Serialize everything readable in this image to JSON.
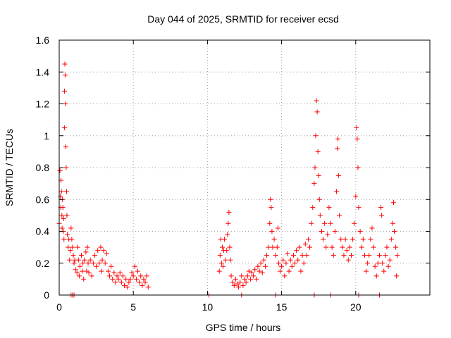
{
  "chart_data": {
    "type": "scatter",
    "title": "Day 044 of 2025, SRMTID for receiver ecsd",
    "xlabel": "GPS time / hours",
    "ylabel": "SRMTID / TECUs",
    "xlim": [
      0,
      25
    ],
    "ylim": [
      0,
      1.6
    ],
    "xticks": [
      0,
      5,
      10,
      15,
      20
    ],
    "xtick_labels": [
      "0",
      "5",
      "10",
      "15",
      "20"
    ],
    "yticks": [
      0,
      0.2,
      0.4,
      0.6,
      0.8,
      1.0,
      1.2,
      1.4,
      1.6
    ],
    "ytick_labels": [
      "0",
      "0.2",
      "0.4",
      "0.6",
      "0.8",
      "1",
      "1.2",
      "1.4",
      "1.6"
    ],
    "grid": true,
    "marker": "+",
    "color": "#ff0000",
    "series": [
      {
        "name": "SRMTID",
        "points": [
          [
            0.0,
            0.45
          ],
          [
            0.05,
            0.78
          ],
          [
            0.08,
            0.62
          ],
          [
            0.1,
            0.55
          ],
          [
            0.12,
            0.72
          ],
          [
            0.15,
            0.65
          ],
          [
            0.18,
            0.5
          ],
          [
            0.2,
            0.42
          ],
          [
            0.22,
            0.6
          ],
          [
            0.25,
            0.55
          ],
          [
            0.28,
            0.4
          ],
          [
            0.3,
            0.48
          ],
          [
            0.32,
            0.35
          ],
          [
            0.35,
            1.05
          ],
          [
            0.36,
            1.28
          ],
          [
            0.38,
            1.45
          ],
          [
            0.4,
            1.38
          ],
          [
            0.42,
            1.2
          ],
          [
            0.45,
            0.93
          ],
          [
            0.47,
            0.8
          ],
          [
            0.5,
            0.65
          ],
          [
            0.52,
            0.5
          ],
          [
            0.55,
            0.38
          ],
          [
            0.6,
            0.3
          ],
          [
            0.65,
            0.35
          ],
          [
            0.7,
            0.22
          ],
          [
            0.75,
            0.28
          ],
          [
            0.8,
            0.42
          ],
          [
            0.85,
            0.35
          ],
          [
            0.9,
            0.3
          ],
          [
            0.95,
            0.25
          ],
          [
            1.0,
            0.2
          ],
          [
            1.05,
            0.22
          ],
          [
            1.1,
            0.16
          ],
          [
            1.2,
            0.14
          ],
          [
            1.25,
            0.3
          ],
          [
            1.3,
            0.22
          ],
          [
            1.35,
            0.12
          ],
          [
            1.4,
            0.18
          ],
          [
            1.5,
            0.25
          ],
          [
            1.55,
            0.15
          ],
          [
            1.6,
            0.2
          ],
          [
            1.65,
            0.1
          ],
          [
            1.7,
            0.22
          ],
          [
            1.8,
            0.27
          ],
          [
            1.85,
            0.15
          ],
          [
            1.9,
            0.3
          ],
          [
            1.95,
            0.2
          ],
          [
            2.0,
            0.14
          ],
          [
            2.1,
            0.22
          ],
          [
            2.2,
            0.12
          ],
          [
            2.3,
            0.2
          ],
          [
            2.4,
            0.25
          ],
          [
            2.5,
            0.18
          ],
          [
            2.6,
            0.28
          ],
          [
            2.7,
            0.2
          ],
          [
            2.8,
            0.3
          ],
          [
            2.85,
            0.15
          ],
          [
            2.9,
            0.22
          ],
          [
            3.0,
            0.28
          ],
          [
            3.1,
            0.2
          ],
          [
            3.2,
            0.26
          ],
          [
            3.3,
            0.15
          ],
          [
            3.4,
            0.12
          ],
          [
            3.5,
            0.18
          ],
          [
            3.6,
            0.1
          ],
          [
            3.7,
            0.14
          ],
          [
            3.8,
            0.08
          ],
          [
            3.9,
            0.12
          ],
          [
            4.0,
            0.1
          ],
          [
            4.1,
            0.14
          ],
          [
            4.2,
            0.08
          ],
          [
            4.3,
            0.12
          ],
          [
            4.4,
            0.06
          ],
          [
            4.5,
            0.1
          ],
          [
            4.6,
            0.05
          ],
          [
            4.7,
            0.08
          ],
          [
            4.8,
            0.1
          ],
          [
            4.9,
            0.14
          ],
          [
            5.0,
            0.12
          ],
          [
            5.1,
            0.18
          ],
          [
            5.2,
            0.1
          ],
          [
            5.3,
            0.15
          ],
          [
            5.4,
            0.08
          ],
          [
            5.5,
            0.12
          ],
          [
            5.6,
            0.06
          ],
          [
            5.7,
            0.1
          ],
          [
            5.8,
            0.08
          ],
          [
            5.9,
            0.12
          ],
          [
            6.0,
            0.05
          ],
          [
            0.8,
            0.0
          ],
          [
            0.9,
            0.0
          ],
          [
            1.0,
            0.0
          ],
          [
            10.8,
            0.15
          ],
          [
            10.85,
            0.25
          ],
          [
            10.9,
            0.35
          ],
          [
            10.95,
            0.2
          ],
          [
            11.0,
            0.3
          ],
          [
            11.05,
            0.18
          ],
          [
            11.1,
            0.28
          ],
          [
            11.15,
            0.35
          ],
          [
            11.2,
            0.22
          ],
          [
            11.3,
            0.28
          ],
          [
            11.35,
            0.38
          ],
          [
            11.4,
            0.45
          ],
          [
            11.45,
            0.52
          ],
          [
            11.5,
            0.3
          ],
          [
            11.55,
            0.22
          ],
          [
            11.6,
            0.12
          ],
          [
            11.7,
            0.08
          ],
          [
            11.8,
            0.06
          ],
          [
            11.9,
            0.1
          ],
          [
            12.0,
            0.07
          ],
          [
            12.1,
            0.05
          ],
          [
            12.2,
            0.08
          ],
          [
            12.3,
            0.12
          ],
          [
            12.4,
            0.06
          ],
          [
            12.5,
            0.1
          ],
          [
            12.6,
            0.08
          ],
          [
            12.7,
            0.12
          ],
          [
            12.8,
            0.15
          ],
          [
            12.9,
            0.1
          ],
          [
            13.0,
            0.14
          ],
          [
            13.1,
            0.12
          ],
          [
            13.2,
            0.16
          ],
          [
            13.3,
            0.1
          ],
          [
            13.4,
            0.18
          ],
          [
            13.5,
            0.15
          ],
          [
            13.6,
            0.2
          ],
          [
            13.7,
            0.14
          ],
          [
            13.8,
            0.22
          ],
          [
            13.9,
            0.18
          ],
          [
            14.0,
            0.25
          ],
          [
            14.1,
            0.3
          ],
          [
            14.2,
            0.45
          ],
          [
            14.25,
            0.6
          ],
          [
            14.3,
            0.55
          ],
          [
            14.35,
            0.4
          ],
          [
            14.4,
            0.3
          ],
          [
            14.5,
            0.35
          ],
          [
            14.6,
            0.25
          ],
          [
            14.7,
            0.3
          ],
          [
            14.75,
            0.42
          ],
          [
            14.8,
            0.2
          ],
          [
            14.9,
            0.15
          ],
          [
            15.0,
            0.18
          ],
          [
            15.1,
            0.22
          ],
          [
            15.2,
            0.12
          ],
          [
            15.3,
            0.2
          ],
          [
            15.4,
            0.26
          ],
          [
            15.5,
            0.15
          ],
          [
            15.6,
            0.22
          ],
          [
            15.7,
            0.18
          ],
          [
            15.8,
            0.25
          ],
          [
            15.9,
            0.2
          ],
          [
            16.0,
            0.28
          ],
          [
            16.1,
            0.22
          ],
          [
            16.2,
            0.3
          ],
          [
            16.3,
            0.15
          ],
          [
            16.4,
            0.25
          ],
          [
            16.5,
            0.2
          ],
          [
            16.6,
            0.32
          ],
          [
            16.7,
            0.25
          ],
          [
            16.8,
            0.35
          ],
          [
            16.9,
            0.3
          ],
          [
            17.0,
            0.45
          ],
          [
            17.1,
            0.55
          ],
          [
            17.2,
            0.7
          ],
          [
            17.25,
            0.8
          ],
          [
            17.3,
            1.0
          ],
          [
            17.35,
            1.22
          ],
          [
            17.4,
            1.15
          ],
          [
            17.45,
            0.9
          ],
          [
            17.5,
            0.75
          ],
          [
            17.55,
            0.6
          ],
          [
            17.6,
            0.5
          ],
          [
            17.7,
            0.4
          ],
          [
            17.8,
            0.35
          ],
          [
            17.9,
            0.45
          ],
          [
            18.0,
            0.3
          ],
          [
            18.1,
            0.38
          ],
          [
            18.2,
            0.55
          ],
          [
            18.3,
            0.45
          ],
          [
            18.4,
            0.3
          ],
          [
            18.5,
            0.25
          ],
          [
            18.6,
            0.4
          ],
          [
            18.7,
            0.65
          ],
          [
            18.75,
            0.92
          ],
          [
            18.8,
            0.98
          ],
          [
            18.85,
            0.75
          ],
          [
            18.9,
            0.5
          ],
          [
            19.0,
            0.35
          ],
          [
            19.1,
            0.3
          ],
          [
            19.2,
            0.25
          ],
          [
            19.3,
            0.35
          ],
          [
            19.4,
            0.28
          ],
          [
            19.5,
            0.22
          ],
          [
            19.6,
            0.3
          ],
          [
            19.7,
            0.25
          ],
          [
            19.8,
            0.35
          ],
          [
            19.9,
            0.45
          ],
          [
            20.0,
            0.62
          ],
          [
            20.05,
            1.05
          ],
          [
            20.1,
            0.98
          ],
          [
            20.15,
            0.8
          ],
          [
            20.2,
            0.55
          ],
          [
            20.3,
            0.4
          ],
          [
            20.4,
            0.3
          ],
          [
            20.5,
            0.35
          ],
          [
            20.6,
            0.25
          ],
          [
            20.7,
            0.15
          ],
          [
            20.8,
            0.2
          ],
          [
            20.9,
            0.25
          ],
          [
            21.0,
            0.35
          ],
          [
            21.1,
            0.42
          ],
          [
            21.2,
            0.3
          ],
          [
            21.3,
            0.18
          ],
          [
            21.4,
            0.12
          ],
          [
            21.5,
            0.2
          ],
          [
            21.6,
            0.25
          ],
          [
            21.7,
            0.55
          ],
          [
            21.75,
            0.5
          ],
          [
            21.8,
            0.2
          ],
          [
            21.9,
            0.15
          ],
          [
            22.0,
            0.25
          ],
          [
            22.1,
            0.3
          ],
          [
            22.2,
            0.18
          ],
          [
            22.3,
            0.22
          ],
          [
            22.4,
            0.35
          ],
          [
            22.5,
            0.45
          ],
          [
            22.55,
            0.58
          ],
          [
            22.6,
            0.4
          ],
          [
            22.7,
            0.3
          ],
          [
            22.75,
            0.12
          ],
          [
            22.8,
            0.25
          ],
          [
            10.1,
            0.0
          ],
          [
            12.3,
            0.0
          ],
          [
            14.6,
            0.0
          ],
          [
            17.2,
            0.0
          ],
          [
            18.3,
            0.0
          ],
          [
            20.2,
            0.0
          ],
          [
            21.6,
            0.0
          ]
        ]
      }
    ]
  }
}
